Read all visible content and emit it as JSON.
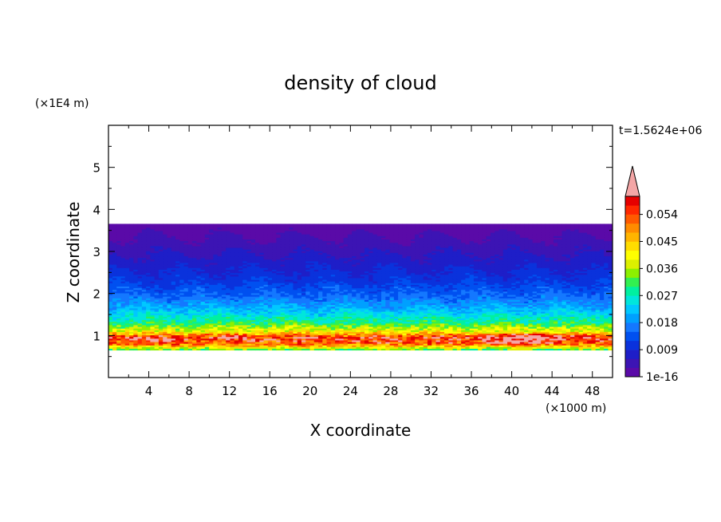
{
  "chart_data": {
    "type": "heatmap",
    "title": "density of cloud",
    "xlabel": "X coordinate",
    "ylabel": "Z coordinate",
    "x_unit": "(×1000 m)",
    "y_unit": "(×1E4 m)",
    "time_label": "t=1.5624e+06",
    "xlim": [
      0,
      50
    ],
    "ylim": [
      0,
      6
    ],
    "x_ticks": [
      4,
      8,
      12,
      16,
      20,
      24,
      28,
      32,
      36,
      40,
      44,
      48
    ],
    "y_ticks": [
      1,
      2,
      3,
      4,
      5
    ],
    "colorbar": {
      "tick_labels": [
        "1e-16",
        "0.009",
        "0.018",
        "0.027",
        "0.036",
        "0.045",
        "0.054"
      ],
      "levels": [
        0.0,
        0.003,
        0.006,
        0.009,
        0.012,
        0.015,
        0.018,
        0.021,
        0.024,
        0.027,
        0.03,
        0.033,
        0.036,
        0.039,
        0.042,
        0.045,
        0.048,
        0.051,
        0.054,
        0.057,
        0.06
      ],
      "colors": [
        "#5a0aa8",
        "#3c14b4",
        "#1e1ec8",
        "#0a32dc",
        "#0050f0",
        "#1478ff",
        "#00a0ff",
        "#00c8ff",
        "#00e6dc",
        "#00f0a0",
        "#32f050",
        "#8cf000",
        "#dcf000",
        "#ffff00",
        "#ffdc00",
        "#ffb400",
        "#ff8c00",
        "#ff5a00",
        "#ff2800",
        "#e60000"
      ],
      "overflow_color": "#f4a6a6"
    },
    "cloud_layer": {
      "z_bottom": 0.65,
      "z_top": 3.65,
      "profile": [
        {
          "z": 0.65,
          "density": 0.03
        },
        {
          "z": 0.8,
          "density": 0.052
        },
        {
          "z": 0.95,
          "density": 0.058
        },
        {
          "z": 1.1,
          "density": 0.04
        },
        {
          "z": 1.3,
          "density": 0.03
        },
        {
          "z": 1.6,
          "density": 0.022
        },
        {
          "z": 1.9,
          "density": 0.016
        },
        {
          "z": 2.3,
          "density": 0.011
        },
        {
          "z": 2.8,
          "density": 0.007
        },
        {
          "z": 3.2,
          "density": 0.004
        },
        {
          "z": 3.65,
          "density": 0.001
        }
      ]
    }
  }
}
